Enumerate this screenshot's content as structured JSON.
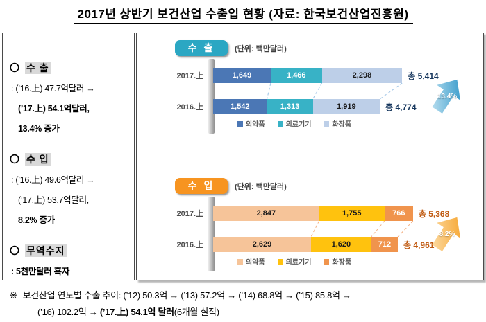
{
  "title": "2017년 상반기 보건산업 수출입 현황 (자료: 한국보건산업진흥원)",
  "summary": {
    "export": {
      "bullet": "〇",
      "heading": "수 출",
      "line1": ": (’16.上) 47.7억달러 →",
      "line2": "(’17.上) 54.1억달러,",
      "line3": "13.4% 증가"
    },
    "import": {
      "bullet": "〇",
      "heading": "수 입",
      "line1": ": (’16.上) 49.6억달러 →",
      "line2": "(’17.上) 53.7억달러,",
      "line3": "8.2% 증가"
    },
    "balance": {
      "bullet": "〇",
      "heading": "무역수지",
      "line1": ": 5천만달러 흑자"
    }
  },
  "chart_data": [
    {
      "type": "bar",
      "orientation": "horizontal-stacked",
      "title": "수 출",
      "unit_label": "(단위: 백만달러)",
      "categories": [
        "2017.上",
        "2016.上"
      ],
      "series": [
        {
          "name": "의약품",
          "color": "#4b77b5",
          "label_color": "#ffffff",
          "values": [
            1649,
            1542
          ]
        },
        {
          "name": "의료기기",
          "color": "#38b2c6",
          "label_color": "#ffffff",
          "values": [
            1466,
            1313
          ]
        },
        {
          "name": "화장품",
          "color": "#bdcfe8",
          "label_color": "#1a1a1a",
          "values": [
            2298,
            1919
          ]
        }
      ],
      "totals": [
        5414,
        4774
      ],
      "total_prefix": "총",
      "total_labels": [
        "총 5,414",
        "총 4,774"
      ],
      "growth_label": "13.4%",
      "badge_color": "#2ba7c3",
      "total_text_color": "#17375e",
      "connector_color": "#9dc3e6",
      "arrow_colors": [
        "#cde9f5",
        "#1f8ec4"
      ],
      "legend_position": "bottom"
    },
    {
      "type": "bar",
      "orientation": "horizontal-stacked",
      "title": "수 입",
      "unit_label": "(단위: 백만달러)",
      "categories": [
        "2017.上",
        "2016.上"
      ],
      "series": [
        {
          "name": "의약품",
          "color": "#f6c499",
          "label_color": "#1a1a1a",
          "values": [
            2847,
            2629
          ]
        },
        {
          "name": "의료기기",
          "color": "#ffc20e",
          "label_color": "#1a1a1a",
          "values": [
            1755,
            1620
          ]
        },
        {
          "name": "화장품",
          "color": "#f0944d",
          "label_color": "#ffffff",
          "values": [
            766,
            712
          ]
        }
      ],
      "totals": [
        5368,
        4961
      ],
      "total_prefix": "총",
      "total_labels": [
        "총 5,368",
        "총 4,961"
      ],
      "growth_label": "8.2%",
      "badge_color": "#f79420",
      "total_text_color": "#c05a11",
      "connector_color": "#f4b183",
      "arrow_colors": [
        "#fde3b5",
        "#f59d1e"
      ],
      "legend_position": "bottom"
    }
  ],
  "footnote": {
    "marker": "※",
    "line1": "보건산업 연도별 수출 추이: (’12) 50.3억 → (’13) 57.2억 → (’14) 68.8억 → (’15) 85.8억 →",
    "line2_prefix": "(’16) 102.2억 → ",
    "line2_bold": "(’17.上) 54.1억 달러",
    "line2_suffix": "(6개월 실적)"
  }
}
